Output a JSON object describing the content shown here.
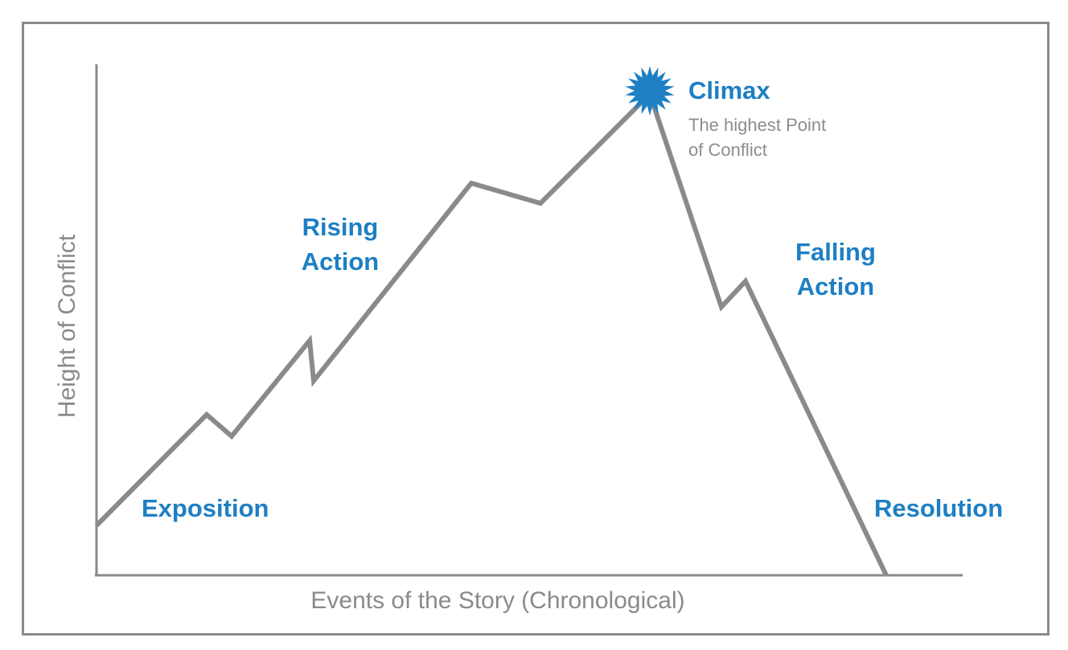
{
  "diagram": {
    "x_axis_label": "Events of the Story (Chronological)",
    "y_axis_label": "Height of Conflict",
    "stages": {
      "exposition": "Exposition",
      "rising_action": [
        "Rising",
        "Action"
      ],
      "climax": "Climax",
      "climax_note": [
        "The highest Point",
        "of Conflict"
      ],
      "falling_action": [
        "Falling",
        "Action"
      ],
      "resolution": "Resolution"
    },
    "colors": {
      "label": "#1e7fc3",
      "line": "#8a8a8a",
      "climax_burst": "#1e7fc3"
    }
  }
}
